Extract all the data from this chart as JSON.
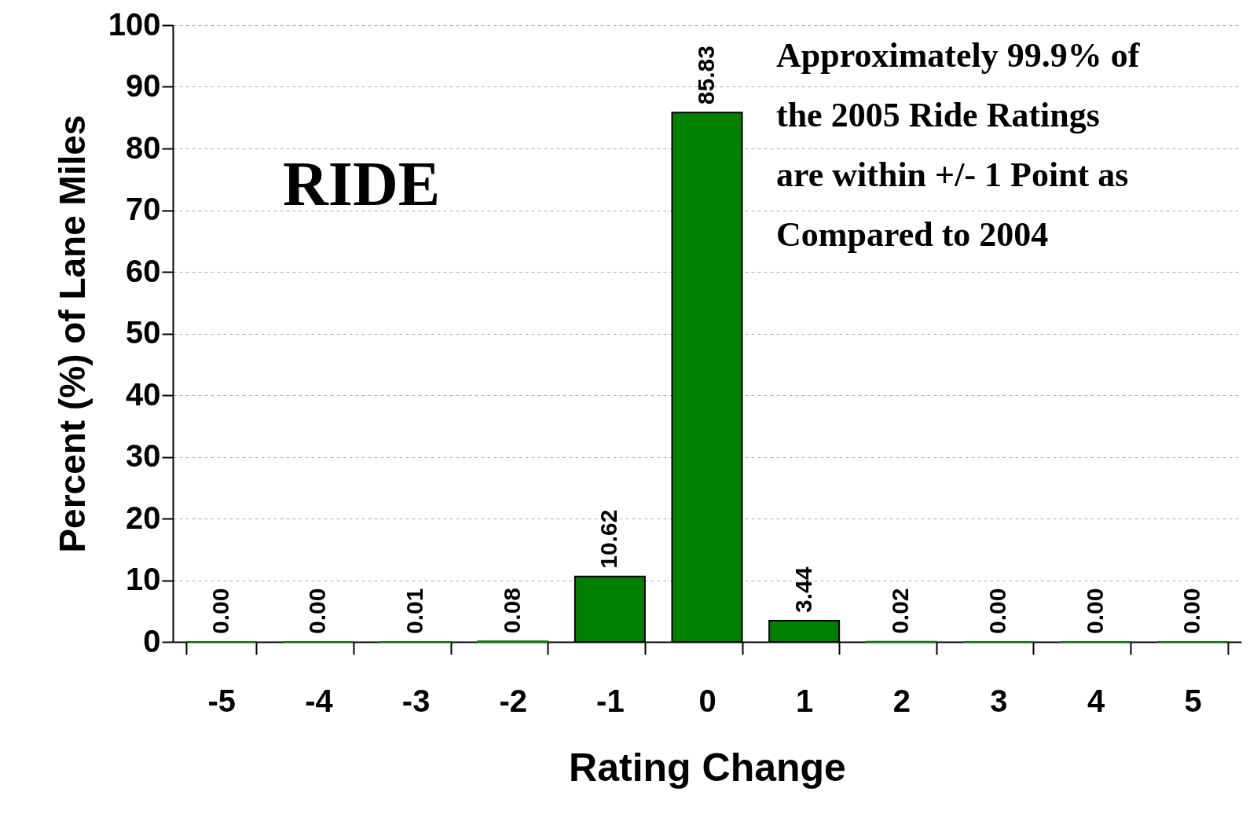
{
  "chart_data": {
    "type": "bar",
    "xlabel": "Rating Change",
    "ylabel": "Percent (%) of Lane Miles",
    "categories": [
      "-5",
      "-4",
      "-3",
      "-2",
      "-1",
      "0",
      "1",
      "2",
      "3",
      "4",
      "5"
    ],
    "values": [
      0.0,
      0.0,
      0.01,
      0.08,
      10.62,
      85.83,
      3.44,
      0.02,
      0.0,
      0.0,
      0.0
    ],
    "color": "#008000",
    "ylim": [
      0,
      100
    ],
    "yticks": [
      0,
      10,
      20,
      30,
      40,
      50,
      60,
      70,
      80,
      90,
      100
    ],
    "value_labels": [
      "0.00",
      "0.00",
      "0.01",
      "0.08",
      "10.62",
      "85.83",
      "3.44",
      "0.02",
      "0.00",
      "0.00",
      "0.00"
    ],
    "grid": "y",
    "annotations": [
      "RIDE",
      "Approximately 99.9% of\nthe 2005  Ride Ratings\nare within +/- 1 Point as\nCompared to 2004"
    ]
  }
}
